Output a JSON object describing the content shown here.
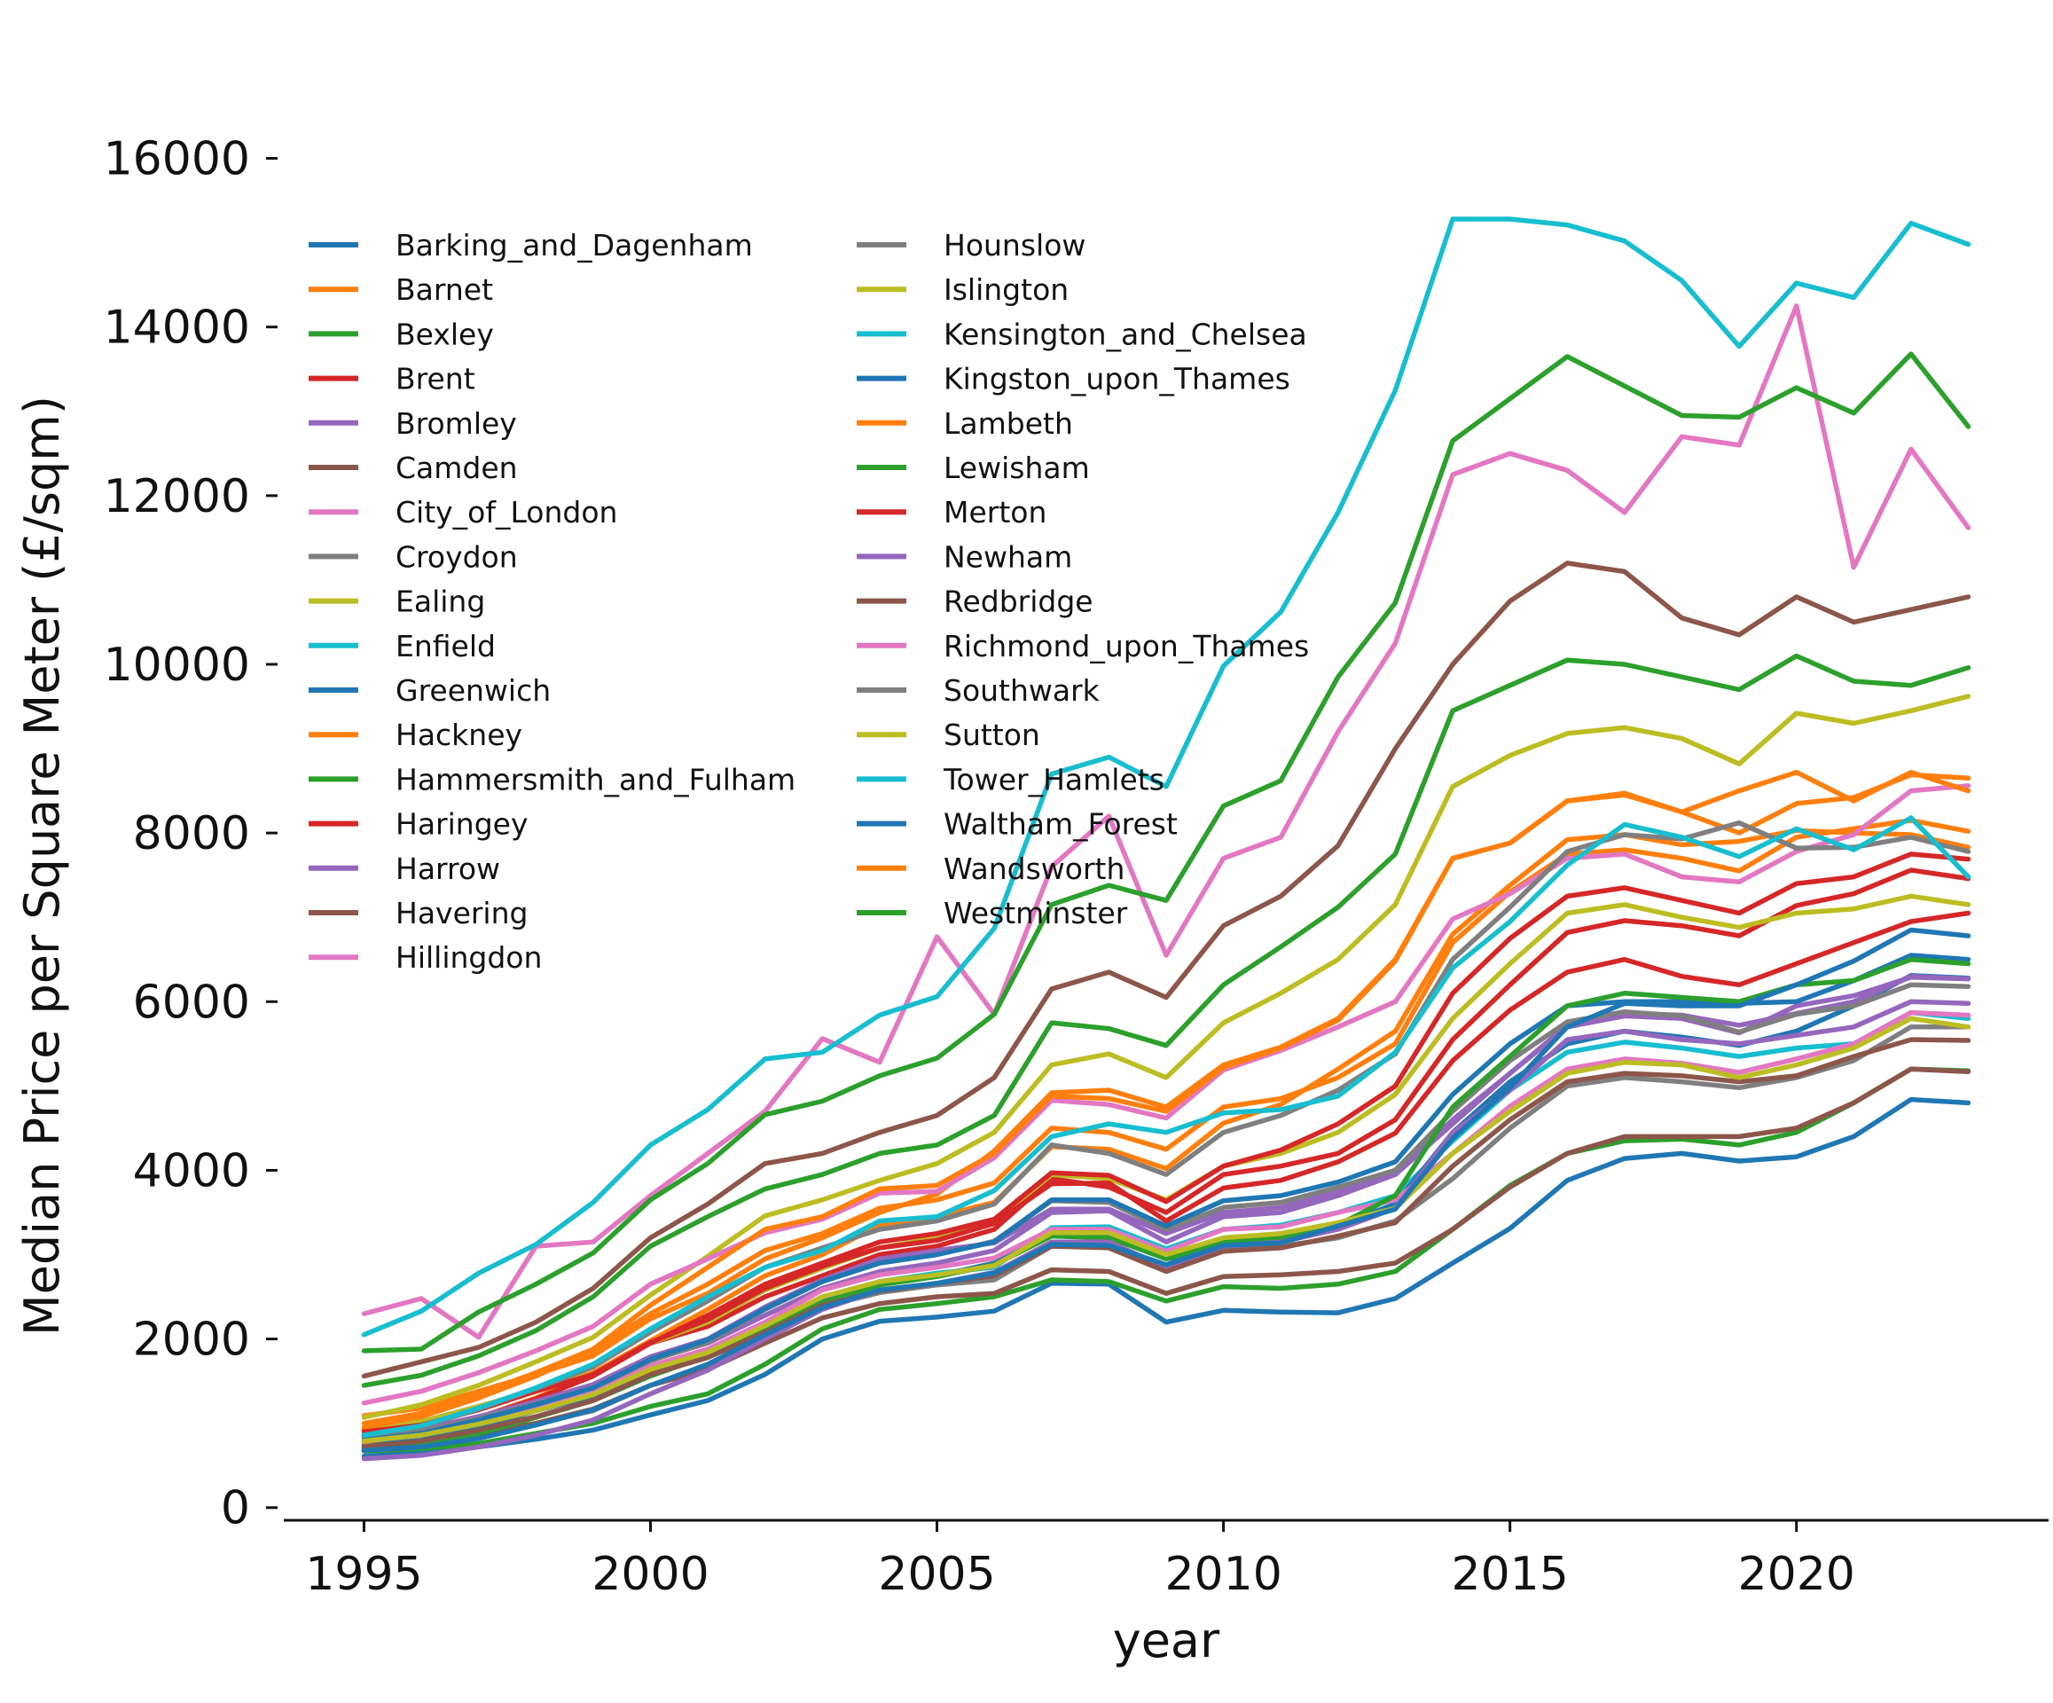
{
  "chart_data": {
    "type": "line",
    "title": "",
    "xlabel": "year",
    "ylabel": "Median Price per Square Meter (£/sqm)",
    "x": [
      1995,
      1996,
      1997,
      1998,
      1999,
      2000,
      2001,
      2002,
      2003,
      2004,
      2005,
      2006,
      2007,
      2008,
      2009,
      2010,
      2011,
      2012,
      2013,
      2014,
      2015,
      2016,
      2017,
      2018,
      2019,
      2020,
      2021,
      2022,
      2023
    ],
    "xlim": [
      1993.6,
      2024.4
    ],
    "ylim": [
      -150,
      16300
    ],
    "xticks": [
      1995,
      2000,
      2005,
      2010,
      2015,
      2020
    ],
    "yticks": [
      0,
      2000,
      4000,
      6000,
      8000,
      10000,
      12000,
      14000,
      16000
    ],
    "grid": false,
    "legend": {
      "placement": "top-left",
      "columns": 2
    },
    "series": [
      {
        "name": "Barking_and_Dagenham",
        "color": "#1f77b4",
        "values": [
          610,
          650,
          720,
          810,
          920,
          1100,
          1270,
          1580,
          2000,
          2210,
          2260,
          2330,
          2660,
          2650,
          2200,
          2340,
          2320,
          2310,
          2480,
          2900,
          3310,
          3880,
          4140,
          4200,
          4110,
          4160,
          4400,
          4840,
          4800
        ]
      },
      {
        "name": "Barnet",
        "color": "#ff7f0e",
        "values": [
          1090,
          1180,
          1380,
          1580,
          1800,
          2240,
          2540,
          2950,
          3200,
          3500,
          3720,
          4230,
          4920,
          4950,
          4750,
          5250,
          5460,
          5800,
          6500,
          7700,
          7880,
          8380,
          8450,
          8250,
          8000,
          8350,
          8420,
          8690,
          8650
        ]
      },
      {
        "name": "Bexley",
        "color": "#2ca02c",
        "values": [
          670,
          700,
          760,
          880,
          1000,
          1200,
          1350,
          1700,
          2120,
          2350,
          2420,
          2500,
          2700,
          2680,
          2450,
          2620,
          2600,
          2650,
          2800,
          3300,
          3820,
          4200,
          4350,
          4370,
          4300,
          4450,
          4800,
          5200,
          5180
        ]
      },
      {
        "name": "Brent",
        "color": "#d62728",
        "values": [
          920,
          1020,
          1200,
          1380,
          1600,
          1950,
          2150,
          2500,
          2750,
          3000,
          3100,
          3300,
          3900,
          3800,
          3500,
          3950,
          4050,
          4200,
          4600,
          5550,
          6200,
          6820,
          6960,
          6900,
          6780,
          7140,
          7280,
          7560,
          7460
        ]
      },
      {
        "name": "Bromley",
        "color": "#9467bd",
        "values": [
          830,
          900,
          1050,
          1220,
          1400,
          1750,
          1950,
          2280,
          2600,
          2800,
          2900,
          3050,
          3500,
          3520,
          3150,
          3450,
          3500,
          3700,
          3950,
          4550,
          5150,
          5700,
          5830,
          5800,
          5630,
          5950,
          6070,
          6290,
          6270
        ]
      },
      {
        "name": "Camden",
        "color": "#8c564b",
        "values": [
          1560,
          1730,
          1900,
          2200,
          2600,
          3200,
          3600,
          4080,
          4200,
          4450,
          4650,
          5100,
          6150,
          6350,
          6050,
          6900,
          7250,
          7850,
          9000,
          10000,
          10750,
          11200,
          11100,
          10550,
          10350,
          10800,
          10500,
          10650,
          10800
        ]
      },
      {
        "name": "City_of_London",
        "color": "#e377c2",
        "values": [
          2300,
          2480,
          2020,
          3100,
          3150,
          3700,
          4200,
          4700,
          5560,
          5280,
          6770,
          5850,
          7600,
          8200,
          6550,
          7700,
          7950,
          9200,
          10250,
          12250,
          12500,
          12300,
          11800,
          12700,
          12600,
          14250,
          11150,
          12550,
          11620
        ]
      },
      {
        "name": "Croydon",
        "color": "#7f7f7f",
        "values": [
          720,
          780,
          880,
          1000,
          1150,
          1450,
          1650,
          2000,
          2380,
          2550,
          2640,
          2700,
          3100,
          3100,
          2820,
          3050,
          3100,
          3200,
          3400,
          3900,
          4500,
          5000,
          5100,
          5050,
          4980,
          5100,
          5300,
          5700,
          5700
        ]
      },
      {
        "name": "Ealing",
        "color": "#bcbd22",
        "values": [
          950,
          1020,
          1200,
          1400,
          1600,
          1950,
          2200,
          2580,
          2840,
          3080,
          3200,
          3400,
          3950,
          3900,
          3650,
          4050,
          4200,
          4450,
          4900,
          5800,
          6450,
          7050,
          7150,
          7000,
          6880,
          7050,
          7100,
          7250,
          7150
        ]
      },
      {
        "name": "Enfield",
        "color": "#17becf",
        "values": [
          800,
          860,
          1000,
          1160,
          1330,
          1620,
          1820,
          2120,
          2480,
          2680,
          2780,
          2850,
          3320,
          3330,
          3070,
          3300,
          3350,
          3500,
          3700,
          4350,
          4950,
          5400,
          5520,
          5450,
          5350,
          5450,
          5500,
          5870,
          5800
        ]
      },
      {
        "name": "Greenwich",
        "color": "#1f77b4",
        "values": [
          740,
          800,
          950,
          1150,
          1320,
          1620,
          1850,
          2150,
          2450,
          2650,
          2750,
          2900,
          3300,
          3250,
          2950,
          3100,
          3150,
          3350,
          3600,
          4450,
          5050,
          5500,
          5650,
          5580,
          5480,
          5650,
          5950,
          6310,
          6280
        ]
      },
      {
        "name": "Hackney",
        "color": "#ff7f0e",
        "values": [
          780,
          880,
          1070,
          1300,
          1600,
          1980,
          2350,
          2750,
          3000,
          3350,
          3450,
          3620,
          4280,
          4250,
          4020,
          4560,
          4780,
          5200,
          5650,
          6800,
          7380,
          7920,
          7980,
          7860,
          7900,
          8030,
          8000,
          7980,
          7830
        ]
      },
      {
        "name": "Hammersmith_and_Fulham",
        "color": "#2ca02c",
        "values": [
          1450,
          1570,
          1800,
          2100,
          2500,
          3100,
          3450,
          3780,
          3950,
          4200,
          4300,
          4650,
          5750,
          5680,
          5480,
          6200,
          6650,
          7120,
          7750,
          9450,
          9750,
          10050,
          10000,
          9850,
          9700,
          10100,
          9800,
          9750,
          9960
        ]
      },
      {
        "name": "Haringey",
        "color": "#d62728",
        "values": [
          790,
          890,
          1070,
          1290,
          1560,
          1950,
          2280,
          2650,
          2900,
          3150,
          3250,
          3420,
          3970,
          3940,
          3630,
          4050,
          4240,
          4550,
          5000,
          6100,
          6750,
          7250,
          7350,
          7200,
          7050,
          7400,
          7480,
          7750,
          7690
        ]
      },
      {
        "name": "Harrow",
        "color": "#9467bd",
        "values": [
          860,
          930,
          1080,
          1260,
          1460,
          1790,
          2000,
          2380,
          2700,
          2950,
          3050,
          3140,
          3540,
          3540,
          3250,
          3500,
          3560,
          3750,
          3950,
          4600,
          5150,
          5720,
          5860,
          5840,
          5720,
          5860,
          6000,
          6300,
          6270
        ]
      },
      {
        "name": "Havering",
        "color": "#8c564b",
        "values": [
          700,
          760,
          860,
          1000,
          1170,
          1450,
          1640,
          1950,
          2250,
          2420,
          2500,
          2540,
          2820,
          2800,
          2540,
          2740,
          2760,
          2800,
          2900,
          3300,
          3800,
          4200,
          4400,
          4400,
          4400,
          4500,
          4800,
          5200,
          5170
        ]
      },
      {
        "name": "Hillingdon",
        "color": "#e377c2",
        "values": [
          830,
          890,
          1040,
          1200,
          1360,
          1680,
          1880,
          2200,
          2580,
          2760,
          2850,
          2960,
          3300,
          3300,
          3040,
          3300,
          3330,
          3500,
          3650,
          4200,
          4760,
          5200,
          5320,
          5270,
          5160,
          5320,
          5500,
          5870,
          5840
        ]
      },
      {
        "name": "Hounslow",
        "color": "#7f7f7f",
        "values": [
          840,
          900,
          1060,
          1230,
          1420,
          1740,
          1960,
          2350,
          2680,
          2900,
          3000,
          3160,
          3640,
          3620,
          3300,
          3560,
          3620,
          3800,
          4000,
          4700,
          5300,
          5760,
          5880,
          5830,
          5640,
          5850,
          5950,
          6200,
          6180
        ]
      },
      {
        "name": "Islington",
        "color": "#bcbd22",
        "values": [
          1070,
          1220,
          1450,
          1730,
          2020,
          2520,
          2980,
          3460,
          3650,
          3880,
          4080,
          4450,
          5250,
          5380,
          5100,
          5750,
          6100,
          6500,
          7150,
          8550,
          8920,
          9180,
          9250,
          9120,
          8820,
          9420,
          9300,
          9450,
          9620
        ]
      },
      {
        "name": "Kensington_and_Chelsea",
        "color": "#17becf",
        "values": [
          2050,
          2330,
          2780,
          3120,
          3620,
          4300,
          4720,
          5320,
          5400,
          5840,
          6060,
          6870,
          8700,
          8900,
          8550,
          9980,
          10620,
          11800,
          13250,
          15280,
          15280,
          15210,
          15020,
          14550,
          13770,
          14520,
          14350,
          15230,
          14980
        ]
      },
      {
        "name": "Kingston_upon_Thames",
        "color": "#1f77b4",
        "values": [
          800,
          880,
          1040,
          1220,
          1420,
          1760,
          1990,
          2360,
          2680,
          2900,
          3000,
          3150,
          3650,
          3650,
          3340,
          3640,
          3700,
          3860,
          4100,
          4900,
          5500,
          5950,
          6000,
          6000,
          5980,
          6000,
          6250,
          6550,
          6500
        ]
      },
      {
        "name": "Lambeth",
        "color": "#ff7f0e",
        "values": [
          950,
          1080,
          1300,
          1560,
          1860,
          2300,
          2650,
          3050,
          3250,
          3550,
          3650,
          3850,
          4500,
          4450,
          4250,
          4750,
          4850,
          5100,
          5500,
          6700,
          7300,
          7750,
          7800,
          7700,
          7550,
          7950,
          8050,
          8150,
          8020
        ]
      },
      {
        "name": "Lewisham",
        "color": "#2ca02c",
        "values": [
          680,
          750,
          880,
          1070,
          1270,
          1560,
          1800,
          2120,
          2430,
          2640,
          2740,
          2880,
          3220,
          3200,
          2950,
          3150,
          3200,
          3350,
          3700,
          4750,
          5350,
          5950,
          6100,
          6050,
          6000,
          6200,
          6250,
          6500,
          6450
        ]
      },
      {
        "name": "Merton",
        "color": "#d62728",
        "values": [
          900,
          980,
          1160,
          1380,
          1580,
          1960,
          2230,
          2600,
          2860,
          3080,
          3170,
          3370,
          3840,
          3850,
          3400,
          3790,
          3880,
          4100,
          4440,
          5300,
          5900,
          6350,
          6500,
          6300,
          6200,
          6450,
          6700,
          6950,
          7050
        ]
      },
      {
        "name": "Newham",
        "color": "#9467bd",
        "values": [
          580,
          620,
          720,
          860,
          1040,
          1350,
          1630,
          2000,
          2350,
          2580,
          2660,
          2790,
          3150,
          3150,
          2850,
          3100,
          3150,
          3300,
          3550,
          4450,
          4950,
          5550,
          5650,
          5550,
          5500,
          5600,
          5700,
          6000,
          5980
        ]
      },
      {
        "name": "Redbridge",
        "color": "#8c564b",
        "values": [
          720,
          790,
          920,
          1080,
          1270,
          1580,
          1780,
          2080,
          2400,
          2570,
          2660,
          2750,
          3100,
          3080,
          2800,
          3040,
          3080,
          3220,
          3380,
          4050,
          4600,
          5050,
          5150,
          5120,
          5050,
          5120,
          5350,
          5550,
          5540
        ]
      },
      {
        "name": "Richmond_upon_Thames",
        "color": "#e377c2",
        "values": [
          1240,
          1380,
          1600,
          1860,
          2150,
          2650,
          2950,
          3260,
          3420,
          3730,
          3750,
          4150,
          4830,
          4780,
          4620,
          5190,
          5420,
          5700,
          6000,
          6980,
          7280,
          7700,
          7750,
          7480,
          7420,
          7780,
          7980,
          8500,
          8560
        ]
      },
      {
        "name": "Southwark",
        "color": "#7f7f7f",
        "values": [
          860,
          960,
          1170,
          1410,
          1670,
          2080,
          2450,
          2850,
          3080,
          3300,
          3400,
          3600,
          4300,
          4200,
          3950,
          4450,
          4650,
          4950,
          5380,
          6500,
          7120,
          7780,
          7980,
          7930,
          8120,
          7820,
          7830,
          7950,
          7780
        ]
      },
      {
        "name": "Sutton",
        "color": "#bcbd22",
        "values": [
          790,
          860,
          990,
          1150,
          1340,
          1640,
          1840,
          2160,
          2500,
          2680,
          2760,
          2870,
          3260,
          3260,
          3000,
          3200,
          3250,
          3380,
          3550,
          4200,
          4700,
          5150,
          5280,
          5250,
          5100,
          5250,
          5450,
          5800,
          5700
        ]
      },
      {
        "name": "Tower_Hamlets",
        "color": "#17becf",
        "values": [
          860,
          970,
          1180,
          1420,
          1700,
          2120,
          2500,
          2850,
          3050,
          3400,
          3450,
          3760,
          4400,
          4550,
          4450,
          4680,
          4720,
          4880,
          5400,
          6400,
          6950,
          7620,
          8100,
          7950,
          7720,
          8050,
          7800,
          8180,
          7480
        ]
      },
      {
        "name": "Waltham_Forest",
        "color": "#1f77b4",
        "values": [
          680,
          720,
          820,
          980,
          1160,
          1450,
          1700,
          2050,
          2370,
          2580,
          2660,
          2780,
          3120,
          3110,
          2880,
          3110,
          3140,
          3340,
          3540,
          4380,
          4980,
          5700,
          5980,
          5950,
          5950,
          6200,
          6480,
          6850,
          6780
        ]
      },
      {
        "name": "Wandsworth",
        "color": "#ff7f0e",
        "values": [
          1000,
          1120,
          1350,
          1600,
          1880,
          2400,
          2850,
          3300,
          3450,
          3780,
          3820,
          4200,
          4880,
          4850,
          4700,
          5220,
          5450,
          5780,
          6480,
          7700,
          7880,
          8380,
          8470,
          8250,
          8500,
          8720,
          8380,
          8720,
          8500
        ]
      },
      {
        "name": "Westminster",
        "color": "#2ca02c",
        "values": [
          1860,
          1880,
          2320,
          2650,
          3020,
          3650,
          4080,
          4660,
          4820,
          5120,
          5330,
          5850,
          7150,
          7380,
          7200,
          8320,
          8620,
          9850,
          10730,
          12650,
          13150,
          13650,
          13300,
          12950,
          12930,
          13280,
          12980,
          13680,
          12820
        ]
      }
    ]
  }
}
